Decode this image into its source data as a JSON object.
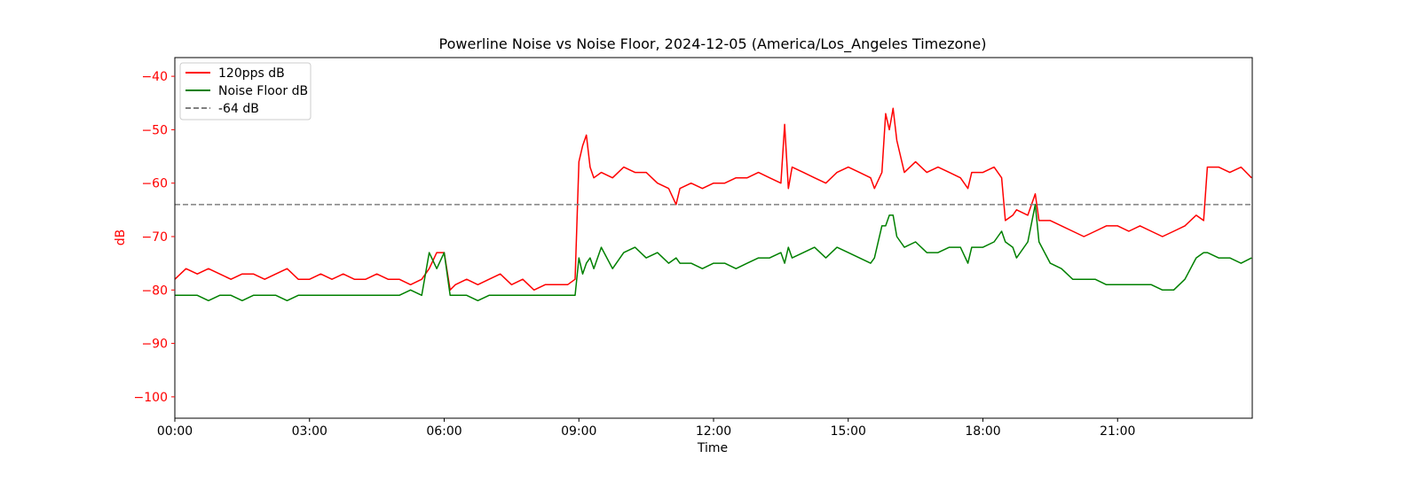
{
  "chart_data": {
    "type": "line",
    "title": "Powerline Noise vs Noise Floor, 2024-12-05 (America/Los_Angeles Timezone)",
    "xlabel": "Time",
    "ylabel": "dB",
    "xlim": [
      "00:00",
      "24:00"
    ],
    "ylim": [
      -104,
      -36.5
    ],
    "x_ticks": [
      "00:00",
      "03:00",
      "06:00",
      "09:00",
      "12:00",
      "15:00",
      "18:00",
      "21:00"
    ],
    "y_ticks": [
      -40,
      -50,
      -60,
      -70,
      -80,
      -90,
      -100
    ],
    "y_tick_labels": [
      "−40",
      "−50",
      "−60",
      "−70",
      "−80",
      "−90",
      "−100"
    ],
    "grid": false,
    "legend_position": "top-left",
    "series": [
      {
        "name": "120pps dB",
        "color": "#ff0000",
        "style": "solid",
        "x": [
          "00:00",
          "00:15",
          "00:30",
          "00:45",
          "01:00",
          "01:15",
          "01:30",
          "01:45",
          "02:00",
          "02:15",
          "02:30",
          "02:45",
          "03:00",
          "03:15",
          "03:30",
          "03:45",
          "04:00",
          "04:15",
          "04:30",
          "04:45",
          "05:00",
          "05:15",
          "05:30",
          "05:40",
          "05:50",
          "06:00",
          "06:08",
          "06:15",
          "06:30",
          "06:45",
          "07:00",
          "07:15",
          "07:30",
          "07:45",
          "08:00",
          "08:15",
          "08:30",
          "08:45",
          "08:55",
          "09:00",
          "09:05",
          "09:10",
          "09:15",
          "09:20",
          "09:30",
          "09:45",
          "10:00",
          "10:15",
          "10:30",
          "10:45",
          "11:00",
          "11:10",
          "11:15",
          "11:30",
          "11:45",
          "12:00",
          "12:15",
          "12:30",
          "12:45",
          "13:00",
          "13:15",
          "13:30",
          "13:35",
          "13:40",
          "13:45",
          "14:00",
          "14:15",
          "14:30",
          "14:45",
          "15:00",
          "15:15",
          "15:30",
          "15:35",
          "15:45",
          "15:50",
          "15:55",
          "16:00",
          "16:05",
          "16:15",
          "16:30",
          "16:45",
          "17:00",
          "17:15",
          "17:30",
          "17:40",
          "17:45",
          "18:00",
          "18:15",
          "18:25",
          "18:30",
          "18:40",
          "18:45",
          "19:00",
          "19:10",
          "19:15",
          "19:30",
          "19:45",
          "20:00",
          "20:15",
          "20:30",
          "20:45",
          "21:00",
          "21:15",
          "21:30",
          "21:45",
          "22:00",
          "22:15",
          "22:30",
          "22:45",
          "22:55",
          "23:00",
          "23:15",
          "23:30",
          "23:45",
          "23:59"
        ],
        "values": [
          -78,
          -76,
          -77,
          -76,
          -77,
          -78,
          -77,
          -77,
          -78,
          -77,
          -76,
          -78,
          -78,
          -77,
          -78,
          -77,
          -78,
          -78,
          -77,
          -78,
          -78,
          -79,
          -78,
          -76,
          -73,
          -73,
          -80,
          -79,
          -78,
          -79,
          -78,
          -77,
          -79,
          -78,
          -80,
          -79,
          -79,
          -79,
          -78,
          -56,
          -53,
          -51,
          -57,
          -59,
          -58,
          -59,
          -57,
          -58,
          -58,
          -60,
          -61,
          -64,
          -61,
          -60,
          -61,
          -60,
          -60,
          -59,
          -59,
          -58,
          -59,
          -60,
          -49,
          -61,
          -57,
          -58,
          -59,
          -60,
          -58,
          -57,
          -58,
          -59,
          -61,
          -58,
          -47,
          -50,
          -46,
          -52,
          -58,
          -56,
          -58,
          -57,
          -58,
          -59,
          -61,
          -58,
          -58,
          -57,
          -59,
          -67,
          -66,
          -65,
          -66,
          -62,
          -67,
          -67,
          -68,
          -69,
          -70,
          -69,
          -68,
          -68,
          -69,
          -68,
          -69,
          -70,
          -69,
          -68,
          -66,
          -67,
          -57,
          -57,
          -58,
          -57,
          -59
        ]
      },
      {
        "name": "Noise Floor dB",
        "color": "#008000",
        "style": "solid",
        "x": [
          "00:00",
          "00:15",
          "00:30",
          "00:45",
          "01:00",
          "01:15",
          "01:30",
          "01:45",
          "02:00",
          "02:15",
          "02:30",
          "02:45",
          "03:00",
          "03:15",
          "03:30",
          "03:45",
          "04:00",
          "04:15",
          "04:30",
          "04:45",
          "05:00",
          "05:15",
          "05:30",
          "05:40",
          "05:50",
          "06:00",
          "06:08",
          "06:15",
          "06:30",
          "06:45",
          "07:00",
          "07:15",
          "07:30",
          "07:45",
          "08:00",
          "08:15",
          "08:30",
          "08:45",
          "08:55",
          "09:00",
          "09:05",
          "09:10",
          "09:15",
          "09:20",
          "09:30",
          "09:45",
          "10:00",
          "10:15",
          "10:30",
          "10:45",
          "11:00",
          "11:10",
          "11:15",
          "11:30",
          "11:45",
          "12:00",
          "12:15",
          "12:30",
          "12:45",
          "13:00",
          "13:15",
          "13:30",
          "13:35",
          "13:40",
          "13:45",
          "14:00",
          "14:15",
          "14:30",
          "14:45",
          "15:00",
          "15:15",
          "15:30",
          "15:35",
          "15:45",
          "15:50",
          "15:55",
          "16:00",
          "16:05",
          "16:15",
          "16:30",
          "16:45",
          "17:00",
          "17:15",
          "17:30",
          "17:40",
          "17:45",
          "18:00",
          "18:15",
          "18:25",
          "18:30",
          "18:40",
          "18:45",
          "19:00",
          "19:10",
          "19:15",
          "19:30",
          "19:45",
          "20:00",
          "20:15",
          "20:30",
          "20:45",
          "21:00",
          "21:15",
          "21:30",
          "21:45",
          "22:00",
          "22:15",
          "22:30",
          "22:45",
          "22:55",
          "23:00",
          "23:15",
          "23:30",
          "23:45",
          "23:59"
        ],
        "values": [
          -81,
          -81,
          -81,
          -82,
          -81,
          -81,
          -82,
          -81,
          -81,
          -81,
          -82,
          -81,
          -81,
          -81,
          -81,
          -81,
          -81,
          -81,
          -81,
          -81,
          -81,
          -80,
          -81,
          -73,
          -76,
          -73,
          -81,
          -81,
          -81,
          -82,
          -81,
          -81,
          -81,
          -81,
          -81,
          -81,
          -81,
          -81,
          -81,
          -74,
          -77,
          -75,
          -74,
          -76,
          -72,
          -76,
          -73,
          -72,
          -74,
          -73,
          -75,
          -74,
          -75,
          -75,
          -76,
          -75,
          -75,
          -76,
          -75,
          -74,
          -74,
          -73,
          -75,
          -72,
          -74,
          -73,
          -72,
          -74,
          -72,
          -73,
          -74,
          -75,
          -74,
          -68,
          -68,
          -66,
          -66,
          -70,
          -72,
          -71,
          -73,
          -73,
          -72,
          -72,
          -75,
          -72,
          -72,
          -71,
          -69,
          -71,
          -72,
          -74,
          -71,
          -64,
          -71,
          -75,
          -76,
          -78,
          -78,
          -78,
          -79,
          -79,
          -79,
          -79,
          -79,
          -80,
          -80,
          -78,
          -74,
          -73,
          -73,
          -74,
          -74,
          -75,
          -74
        ]
      },
      {
        "name": "-64 dB",
        "color": "#808080",
        "style": "dashed",
        "constant": -64
      }
    ]
  }
}
